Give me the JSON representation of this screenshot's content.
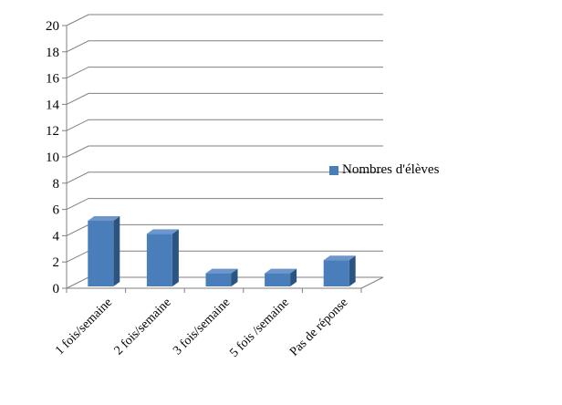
{
  "chart_data": {
    "type": "bar",
    "categories": [
      "1 fois/semaine",
      "2 fois/semaine",
      "3 fois/semaine",
      "5 fois /semaine",
      "Pas de réponse"
    ],
    "series": [
      {
        "name": "Nombres d'élèves",
        "values": [
          5,
          4,
          1,
          1,
          2
        ]
      }
    ],
    "ylim": [
      0,
      20
    ],
    "yticks": [
      0,
      2,
      4,
      6,
      8,
      10,
      12,
      14,
      16,
      18,
      20
    ],
    "grid": true,
    "legend_position": "right",
    "colors": {
      "front": "#4a7ebb",
      "side": "#2c5480",
      "top": "#6d97cc",
      "grid": "#808080",
      "axis": "#808080"
    }
  }
}
